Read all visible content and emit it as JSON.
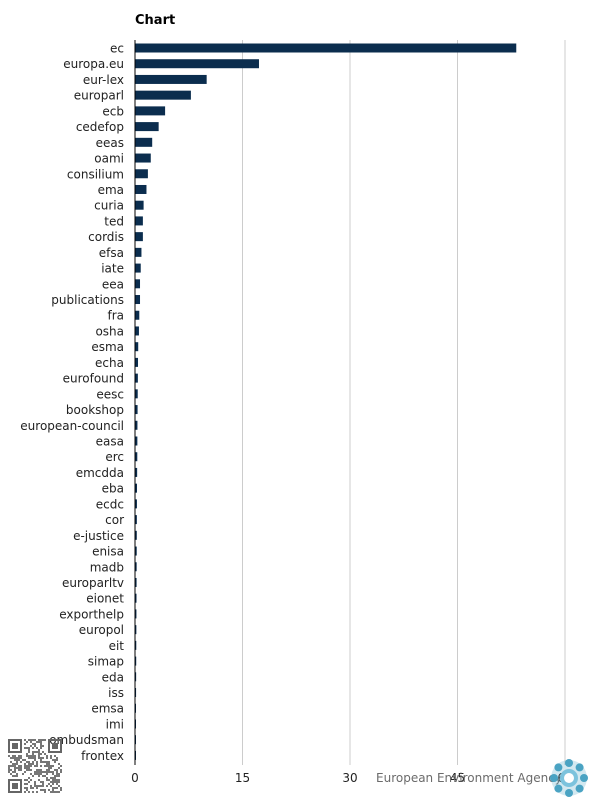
{
  "title": "Chart",
  "footer": {
    "brand": "European Environment Agency"
  },
  "colors": {
    "bar": "#0b2d4e",
    "grid": "#cccccc",
    "axis": "#000000",
    "text": "#222222",
    "logo": "#4aa3c3"
  },
  "icons": {
    "logo": "eea-logo-icon",
    "qr": "qr-code-icon"
  },
  "chart_data": {
    "type": "bar",
    "orientation": "horizontal",
    "categories": [
      "ec",
      "europa.eu",
      "eur-lex",
      "europarl",
      "ecb",
      "cedefop",
      "eeas",
      "oami",
      "consilium",
      "ema",
      "curia",
      "ted",
      "cordis",
      "efsa",
      "iate",
      "eea",
      "publications",
      "fra",
      "osha",
      "esma",
      "echa",
      "eurofound",
      "eesc",
      "bookshop",
      "european-council",
      "easa",
      "erc",
      "emcdda",
      "eba",
      "ecdc",
      "cor",
      "e-justice",
      "enisa",
      "madb",
      "europarltv",
      "eionet",
      "exporthelp",
      "europol",
      "eit",
      "simap",
      "eda",
      "iss",
      "emsa",
      "imi",
      "ombudsman",
      "frontex"
    ],
    "values": [
      53.2,
      17.3,
      10.0,
      7.8,
      4.2,
      3.3,
      2.4,
      2.2,
      1.8,
      1.6,
      1.2,
      1.1,
      1.1,
      0.9,
      0.8,
      0.7,
      0.7,
      0.6,
      0.55,
      0.45,
      0.42,
      0.4,
      0.38,
      0.36,
      0.34,
      0.33,
      0.32,
      0.3,
      0.28,
      0.27,
      0.26,
      0.25,
      0.24,
      0.23,
      0.22,
      0.21,
      0.2,
      0.19,
      0.18,
      0.17,
      0.16,
      0.15,
      0.14,
      0.13,
      0.12,
      0.11
    ],
    "xticks": [
      0,
      15,
      30,
      45,
      60
    ],
    "xlim": [
      0,
      60
    ],
    "grid": true,
    "legend": "none"
  }
}
